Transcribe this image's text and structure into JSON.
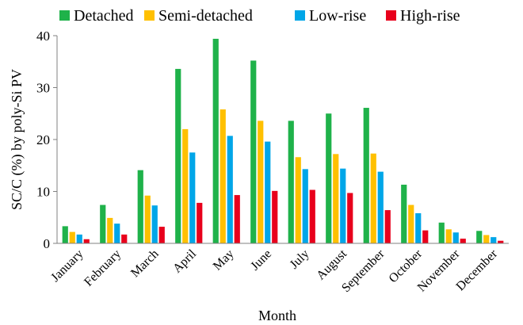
{
  "chart_data": {
    "type": "bar",
    "xlabel": "Month",
    "ylabel": "SC/C (%) by poly-Si PV",
    "ylim": [
      0,
      40
    ],
    "yticks": [
      0,
      10,
      20,
      30,
      40
    ],
    "grid": false,
    "legend_position": "top",
    "categories": [
      "January",
      "February",
      "March",
      "April",
      "May",
      "June",
      "July",
      "August",
      "September",
      "October",
      "November",
      "December"
    ],
    "series": [
      {
        "name": "Detached",
        "color": "#1FB24A",
        "values": [
          3.3,
          7.4,
          14.1,
          33.6,
          39.4,
          35.2,
          23.6,
          25.0,
          26.1,
          11.3,
          4.0,
          2.4
        ]
      },
      {
        "name": "Semi-detached",
        "color": "#FFC000",
        "values": [
          2.2,
          4.9,
          9.2,
          22.0,
          25.8,
          23.6,
          16.6,
          17.2,
          17.3,
          7.4,
          2.7,
          1.6
        ]
      },
      {
        "name": "Low-rise",
        "color": "#00A6E8",
        "values": [
          1.7,
          3.8,
          7.3,
          17.5,
          20.7,
          19.6,
          14.3,
          14.4,
          13.8,
          5.8,
          2.1,
          1.2
        ]
      },
      {
        "name": "High-rise",
        "color": "#E8001C",
        "values": [
          0.8,
          1.7,
          3.2,
          7.8,
          9.3,
          10.1,
          10.3,
          9.7,
          6.4,
          2.5,
          0.9,
          0.5
        ]
      }
    ]
  }
}
